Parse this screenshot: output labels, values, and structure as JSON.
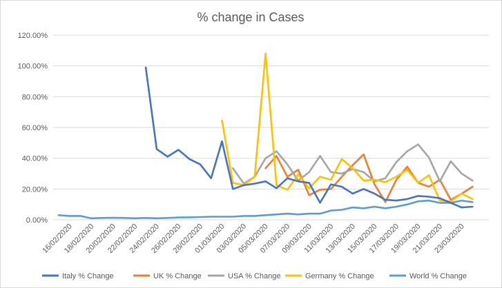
{
  "chart_data": {
    "type": "line",
    "title": "% change in Cases",
    "xlabel": "",
    "ylabel": "",
    "ylim": [
      0,
      120
    ],
    "yticks": [
      "0.00%",
      "20.00%",
      "40.00%",
      "60.00%",
      "80.00%",
      "100.00%",
      "120.00%"
    ],
    "ytick_values": [
      0,
      20,
      40,
      60,
      80,
      100,
      120
    ],
    "categories": [
      "15/02",
      "16/02/2020",
      "17/02",
      "18/02/2020",
      "19/02",
      "20/02/2020",
      "21/02",
      "22/02/2020",
      "23/02",
      "24/02/2020",
      "25/02",
      "26/02/2020",
      "27/02",
      "28/02/2020",
      "29/02",
      "01/03/2020",
      "02/03",
      "03/03/2020",
      "04/03",
      "05/03/2020",
      "06/03",
      "07/03/2020",
      "08/03",
      "09/03/2020",
      "10/03",
      "11/03/2020",
      "12/03",
      "13/03/2020",
      "14/03",
      "15/03/2020",
      "16/03",
      "17/03/2020",
      "18/03",
      "19/03/2020",
      "20/03",
      "21/03/2020",
      "22/03",
      "23/03/2020",
      "24/03",
      "25/03"
    ],
    "xtick_labels": [
      "16/02/2020",
      "18/02/2020",
      "20/02/2020",
      "22/02/2020",
      "24/02/2020",
      "26/02/2020",
      "28/02/2020",
      "01/03/2020",
      "03/03/2020",
      "05/03/2020",
      "07/03/2020",
      "09/03/2020",
      "11/03/2020",
      "13/03/2020",
      "15/03/2020",
      "17/03/2020",
      "19/03/2020",
      "21/03/2020",
      "23/03/2020"
    ],
    "grid": true,
    "legend_position": "bottom",
    "series": [
      {
        "name": "Italy % Change",
        "color": "#4472C4",
        "values": [
          null,
          null,
          null,
          null,
          null,
          null,
          null,
          null,
          99,
          46,
          41,
          45.5,
          39.5,
          36,
          27,
          51,
          20,
          22.5,
          23.5,
          25,
          20.5,
          27,
          25,
          24,
          11,
          23,
          21.5,
          17,
          20,
          17,
          13,
          12.5,
          13.5,
          15.5,
          15,
          14,
          11,
          8,
          8.5,
          null
        ]
      },
      {
        "name": "UK % Change",
        "color": "#ED7D31",
        "values": [
          null,
          null,
          null,
          null,
          null,
          null,
          null,
          null,
          null,
          null,
          null,
          null,
          null,
          null,
          null,
          null,
          null,
          null,
          null,
          33.5,
          41.5,
          28,
          32.5,
          16,
          19.5,
          20,
          28,
          35.5,
          42.5,
          23,
          11.5,
          26,
          34.5,
          24,
          21.5,
          26,
          13,
          17,
          21.5,
          null
        ]
      },
      {
        "name": "USA % Change",
        "color": "#A5A5A5",
        "values": [
          null,
          null,
          null,
          null,
          null,
          null,
          null,
          null,
          null,
          null,
          null,
          null,
          null,
          null,
          null,
          null,
          33.5,
          23.5,
          28,
          40,
          44.5,
          36,
          25.5,
          31,
          41.5,
          31,
          30,
          33,
          31,
          25,
          27,
          37.5,
          44.5,
          49,
          40.5,
          25,
          38,
          30,
          25.5,
          null
        ]
      },
      {
        "name": "Germany % Change",
        "color": "#FFC000",
        "values": [
          null,
          null,
          null,
          null,
          null,
          null,
          null,
          null,
          null,
          null,
          null,
          null,
          null,
          null,
          null,
          64.5,
          24,
          22.5,
          28,
          108,
          22.5,
          19.5,
          29.5,
          20.5,
          28,
          26,
          39.5,
          33.5,
          25.5,
          26,
          24.5,
          28,
          32.5,
          24,
          29,
          12.5,
          12,
          17,
          13.5,
          null
        ]
      },
      {
        "name": "World % Change",
        "color": "#5B9BD5",
        "values": [
          3,
          2.5,
          2.5,
          1,
          1.2,
          1.3,
          1.2,
          1,
          1.2,
          1,
          1.2,
          1.5,
          1.6,
          1.8,
          2,
          2,
          2,
          2.5,
          2.5,
          3,
          3.5,
          4,
          3.5,
          4,
          4,
          6,
          6.5,
          8,
          7.5,
          8.5,
          7.5,
          8.5,
          10,
          12,
          12.5,
          11,
          11,
          12.5,
          11.5,
          null
        ]
      }
    ]
  }
}
